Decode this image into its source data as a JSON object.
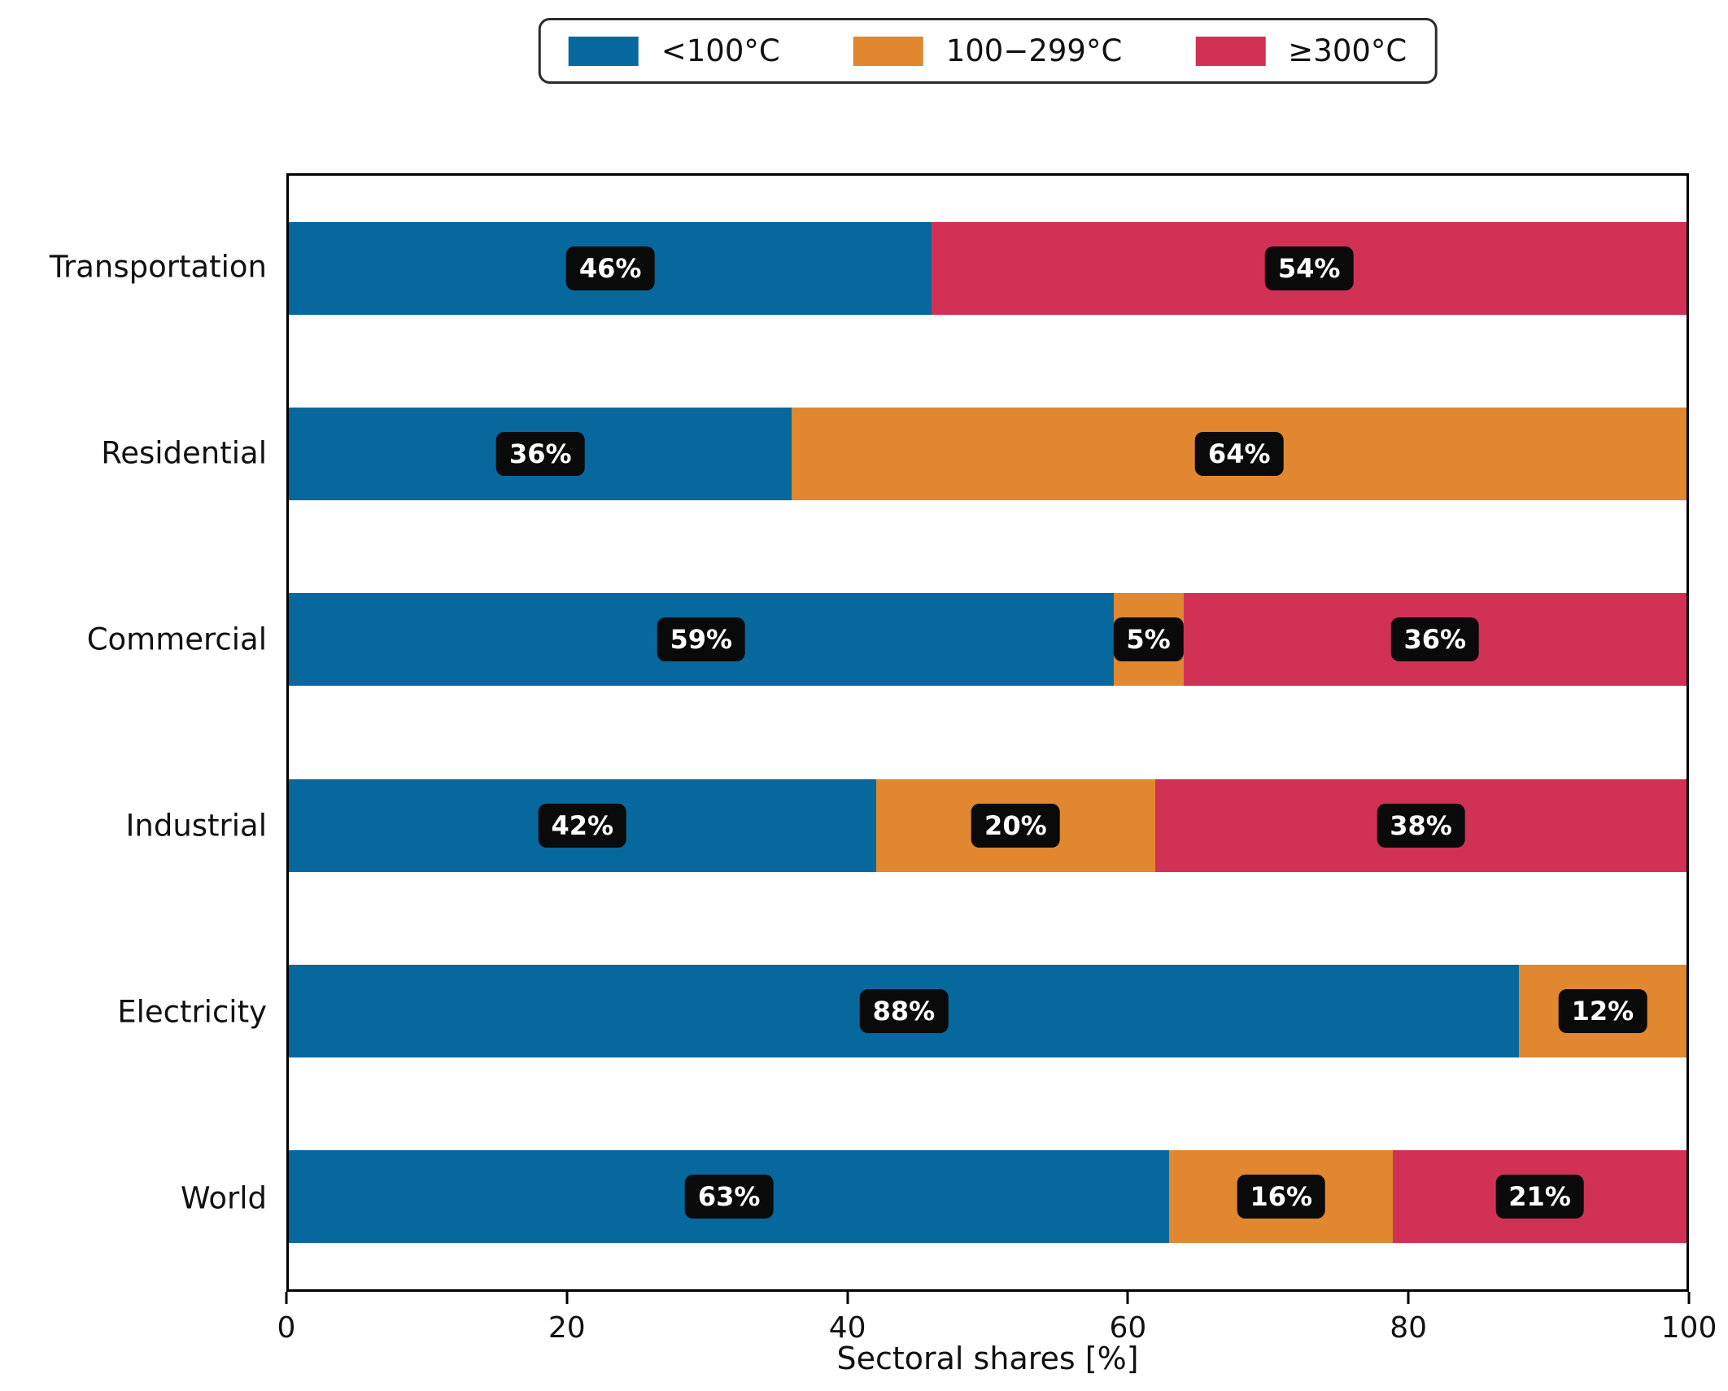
{
  "figure": {
    "background": "#ffffff",
    "label_chip": {
      "background": "#0a0a0a",
      "text_color": "#ffffff"
    }
  },
  "chart_data": {
    "type": "bar",
    "orientation": "horizontal",
    "stacked": true,
    "title": "",
    "xlabel": "Sectoral shares [%]",
    "ylabel": "",
    "xlim": [
      0,
      100
    ],
    "xticks": [
      "0",
      "20",
      "40",
      "60",
      "80",
      "100"
    ],
    "xtick_values": [
      0,
      20,
      40,
      60,
      80,
      100
    ],
    "grid": false,
    "legend_position": "top center",
    "bar_label_format": "{value}%",
    "categories": [
      "Transportation",
      "Residential",
      "Commercial",
      "Industrial",
      "Electricity",
      "World"
    ],
    "series": [
      {
        "name": "<100°C",
        "color": "#07689e",
        "values": [
          46,
          36,
          59,
          42,
          88,
          63
        ]
      },
      {
        "name": "100−299°C",
        "color": "#e0872f",
        "values": [
          0,
          64,
          5,
          20,
          12,
          16
        ]
      },
      {
        "name": "≥300°C",
        "color": "#d23156",
        "values": [
          54,
          0,
          36,
          38,
          0,
          21
        ]
      }
    ]
  }
}
